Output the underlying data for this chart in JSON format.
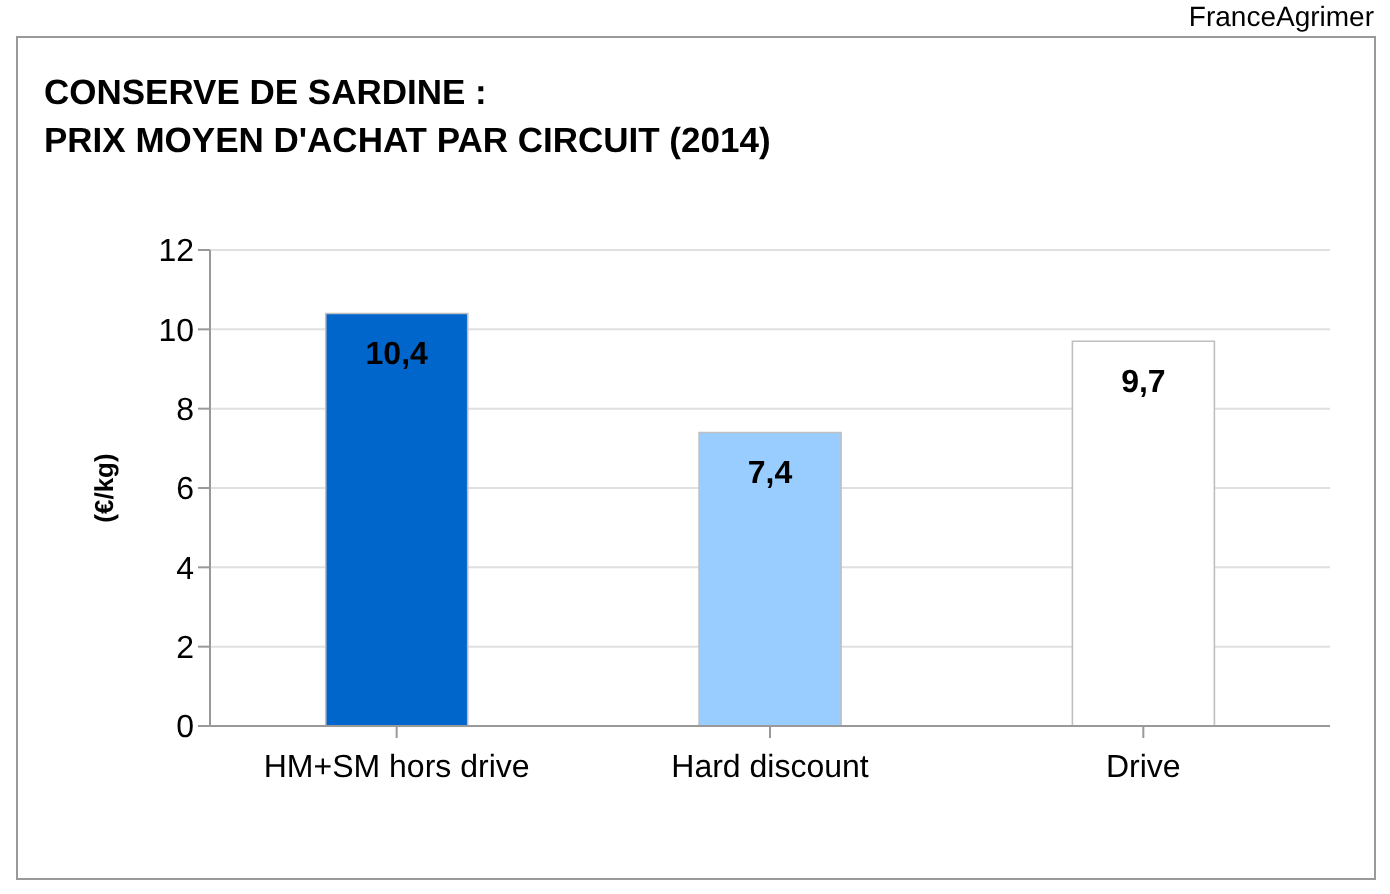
{
  "chart_data": {
    "type": "bar",
    "title": "CONSERVE DE SARDINE :\nPRIX MOYEN D'ACHAT PAR CIRCUIT (2014)",
    "ylabel": "(€/kg)",
    "annotations": [
      "FranceAgrimer"
    ],
    "categories": [
      "HM+SM hors drive",
      "Hard discount",
      "Drive"
    ],
    "values": [
      10.4,
      7.4,
      9.7
    ],
    "colors": [
      "#0066cc",
      "#99ccff",
      "#ffffff"
    ],
    "value_labels": [
      "10,4",
      "7,4",
      "9,7"
    ],
    "ylim": [
      0,
      12
    ],
    "yticks": [
      0,
      2,
      4,
      6,
      8,
      10,
      12
    ],
    "grid": "y"
  }
}
